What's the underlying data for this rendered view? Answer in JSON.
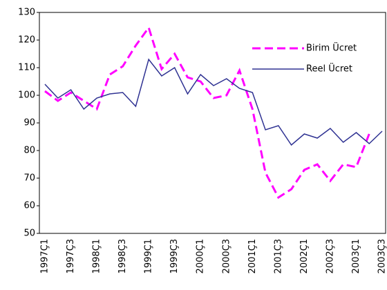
{
  "chart_data": {
    "type": "line",
    "categories": [
      "1997Ç1",
      null,
      "1997Ç3",
      null,
      "1998Ç1",
      null,
      "1998Ç3",
      null,
      "1999Ç1",
      null,
      "1999Ç3",
      null,
      "2000Ç1",
      null,
      "2000Ç3",
      null,
      "2001Ç1",
      null,
      "2001Ç3",
      null,
      "2002Ç1",
      null,
      "2002Ç3",
      null,
      "2003Ç1",
      null,
      "2003Ç3"
    ],
    "series": [
      {
        "name": "Birim Ücret",
        "color": "#ff00ff",
        "dashed": true,
        "values": [
          101.5,
          98,
          101,
          98,
          95,
          107.5,
          110.5,
          118,
          124.5,
          109.5,
          115,
          106.5,
          105,
          99,
          100,
          109,
          95,
          72,
          63,
          66,
          73,
          75,
          69,
          75,
          74,
          86,
          null
        ]
      },
      {
        "name": "Reel Ücret",
        "color": "#2e3192",
        "dashed": false,
        "values": [
          104,
          99,
          102,
          95,
          99,
          100.5,
          101,
          96,
          113,
          107,
          110,
          100.5,
          107.5,
          103.5,
          106,
          102.5,
          101,
          87.5,
          89,
          82,
          86,
          84.5,
          88,
          83,
          86.5,
          82.5,
          87
        ]
      }
    ],
    "ylim": [
      50,
      130
    ],
    "yticks": [
      50,
      60,
      70,
      80,
      90,
      100,
      110,
      120,
      130
    ],
    "grid": false,
    "legend": "upper right"
  }
}
